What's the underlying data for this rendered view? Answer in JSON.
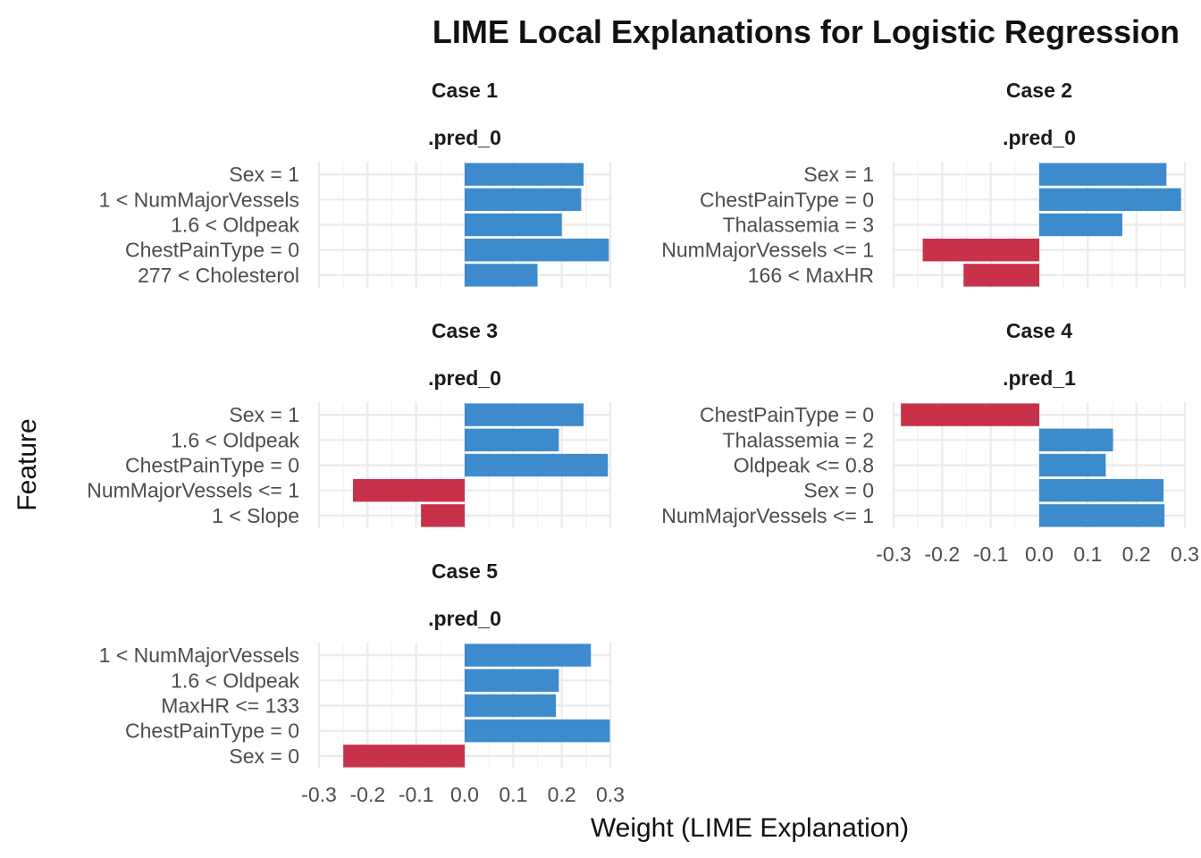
{
  "chart_data": {
    "type": "bar",
    "orientation": "horizontal",
    "title": "LIME Local Explanations for Logistic Regression",
    "xlabel": "Weight (LIME Explanation)",
    "ylabel": "Feature",
    "xlim": [
      -0.3,
      0.3
    ],
    "x_ticks": [
      "-0.3",
      "-0.2",
      "-0.1",
      "0.0",
      "0.1",
      "0.2",
      "0.3"
    ],
    "grid": true,
    "colors": {
      "supports": "#3d8bcd",
      "contradicts": "#c8314a"
    },
    "panels": [
      {
        "case": "Case 1",
        "label": ".pred_0",
        "features": [
          "Sex = 1",
          "1 < NumMajorVessels",
          "1.6 < Oldpeak",
          "ChestPainType = 0",
          "277 < Cholesterol"
        ],
        "weights": [
          0.245,
          0.24,
          0.2,
          0.297,
          0.15
        ]
      },
      {
        "case": "Case 2",
        "label": ".pred_0",
        "features": [
          "Sex = 1",
          "ChestPainType = 0",
          "Thalassemia = 3",
          "NumMajorVessels <= 1",
          "166 < MaxHR"
        ],
        "weights": [
          0.262,
          0.292,
          0.171,
          -0.24,
          -0.156
        ]
      },
      {
        "case": "Case 3",
        "label": ".pred_0",
        "features": [
          "Sex = 1",
          "1.6 < Oldpeak",
          "ChestPainType = 0",
          "NumMajorVessels <= 1",
          "1 < Slope"
        ],
        "weights": [
          0.245,
          0.194,
          0.295,
          -0.23,
          -0.09
        ]
      },
      {
        "case": "Case 4",
        "label": ".pred_1",
        "features": [
          "ChestPainType = 0",
          "Thalassemia = 2",
          "Oldpeak <= 0.8",
          "Sex = 0",
          "NumMajorVessels <= 1"
        ],
        "weights": [
          -0.285,
          0.152,
          0.137,
          0.256,
          0.258
        ]
      },
      {
        "case": "Case 5",
        "label": ".pred_0",
        "features": [
          "1 < NumMajorVessels",
          "1.6 < Oldpeak",
          "MaxHR <= 133",
          "ChestPainType = 0",
          "Sex = 0"
        ],
        "weights": [
          0.26,
          0.194,
          0.188,
          0.299,
          -0.25
        ]
      }
    ]
  }
}
